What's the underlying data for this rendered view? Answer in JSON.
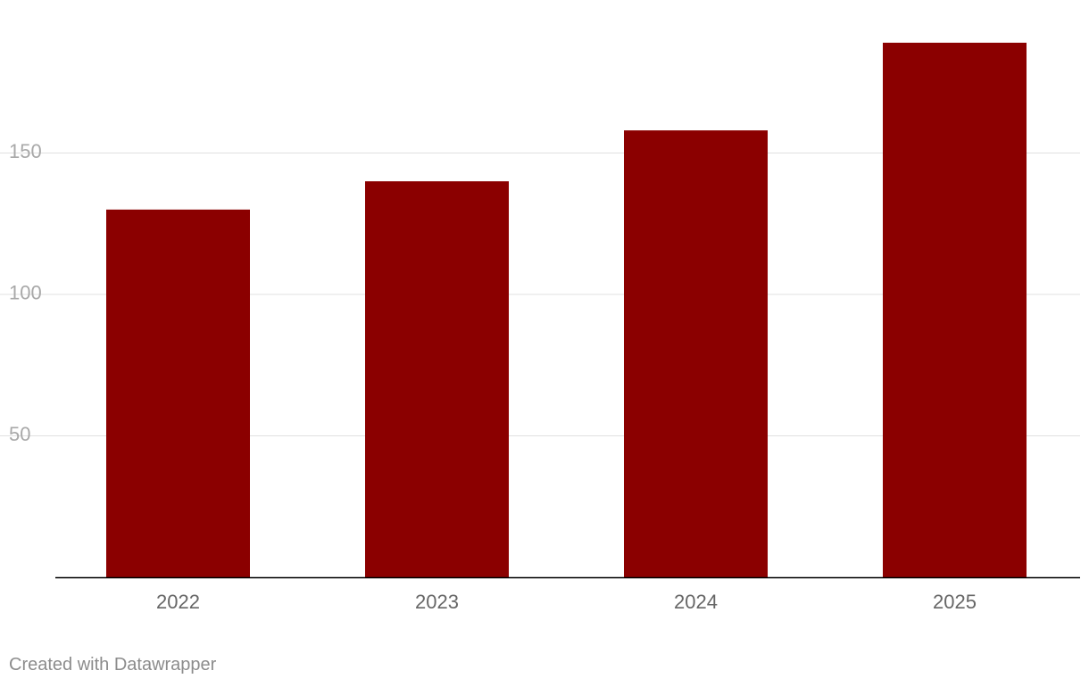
{
  "chart_data": {
    "type": "bar",
    "categories": [
      "2022",
      "2023",
      "2024",
      "2025"
    ],
    "values": [
      130,
      140,
      158,
      189
    ],
    "title": "",
    "xlabel": "",
    "ylabel": "",
    "ylim": [
      0,
      200
    ],
    "yticks": [
      50,
      100,
      150
    ],
    "bar_color": "#8b0000",
    "grid": true,
    "legend": "none"
  },
  "footer": {
    "credit": "Created with Datawrapper"
  },
  "colors": {
    "bar": "#8b0000",
    "grid": "#e0e0e0",
    "axis": "#000000",
    "ytick_text": "#a8a8a8",
    "xtick_text": "#666666",
    "credit_text": "#8c8c8c"
  }
}
